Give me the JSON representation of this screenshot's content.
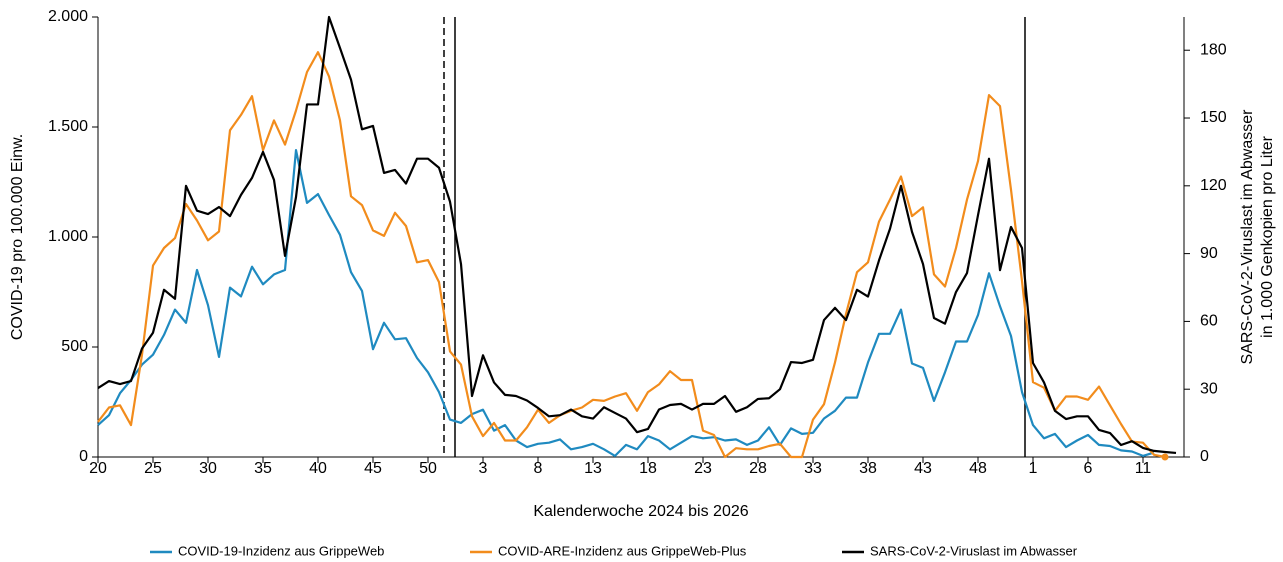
{
  "chart_data": {
    "type": "line",
    "x_label": "Kalenderwoche 2024 bis 2026",
    "y_label": "COVID-19 pro 100.000 Einw.",
    "y2_label": [
      "SARS-CoV-2-Viruslast im Abwasser",
      "in 1.000 Genkopien pro Liter"
    ],
    "categories": [
      "20",
      null,
      null,
      null,
      null,
      "25",
      null,
      null,
      null,
      null,
      "30",
      null,
      null,
      null,
      null,
      "35",
      null,
      null,
      null,
      null,
      "40",
      null,
      null,
      null,
      null,
      "45",
      null,
      null,
      null,
      null,
      "50",
      null,
      null,
      null,
      null,
      "3",
      null,
      null,
      null,
      null,
      "8",
      null,
      null,
      null,
      null,
      "13",
      null,
      null,
      null,
      null,
      "18",
      null,
      null,
      null,
      null,
      "23",
      null,
      null,
      null,
      null,
      "28",
      null,
      null,
      null,
      null,
      "33",
      null,
      null,
      null,
      null,
      "38",
      null,
      null,
      null,
      null,
      "43",
      null,
      null,
      null,
      null,
      "48",
      null,
      null,
      null,
      null,
      "1",
      null,
      null,
      null,
      null,
      "6",
      null,
      null,
      null,
      null,
      "11",
      null,
      null,
      null
    ],
    "ylim": [
      0,
      2000
    ],
    "yticks": [
      0,
      500,
      {
        "value": 1000,
        "label": "1.000"
      },
      {
        "value": 1500,
        "label": "1.500"
      },
      {
        "value": 2000,
        "label": "2.000"
      }
    ],
    "y2lim": [
      0,
      194.7
    ],
    "y2ticks": [
      0,
      30,
      60,
      90,
      120,
      150,
      180
    ],
    "series": [
      {
        "name": "COVID-19-Inzidenz aus GrippeWeb",
        "color": "#1f8ac0",
        "axis": "y",
        "values": [
          145,
          190,
          290,
          350,
          420,
          465,
          555,
          670,
          610,
          850,
          690,
          455,
          770,
          730,
          865,
          785,
          830,
          850,
          1395,
          1155,
          1195,
          1100,
          1010,
          840,
          755,
          490,
          610,
          535,
          540,
          450,
          385,
          295,
          170,
          155,
          195,
          215,
          120,
          145,
          75,
          45,
          60,
          65,
          80,
          35,
          45,
          60,
          35,
          5,
          55,
          35,
          95,
          75,
          35,
          65,
          95,
          85,
          90,
          75,
          80,
          55,
          75,
          135,
          55,
          130,
          105,
          110,
          175,
          210,
          270,
          270,
          430,
          560,
          560,
          670,
          425,
          405,
          255,
          385,
          525,
          525,
          645,
          835,
          685,
          550,
          295,
          145,
          85,
          105,
          45,
          75,
          100,
          55,
          50,
          30,
          25,
          5,
          20,
          null,
          null
        ]
      },
      {
        "name": "COVID-ARE-Inzidenz aus GrippeWeb-Plus",
        "color": "#f28c1c",
        "axis": "y",
        "marker_last": true,
        "values": [
          160,
          225,
          235,
          145,
          465,
          870,
          950,
          995,
          1150,
          1075,
          985,
          1025,
          1485,
          1555,
          1640,
          1395,
          1530,
          1420,
          1575,
          1750,
          1840,
          1730,
          1530,
          1185,
          1145,
          1030,
          1005,
          1110,
          1050,
          885,
          895,
          795,
          480,
          420,
          185,
          95,
          155,
          75,
          75,
          135,
          215,
          155,
          190,
          210,
          225,
          260,
          255,
          275,
          290,
          210,
          295,
          330,
          390,
          350,
          350,
          120,
          100,
          0,
          40,
          35,
          35,
          50,
          60,
          0,
          0,
          170,
          240,
          430,
          650,
          840,
          885,
          1070,
          1170,
          1275,
          1095,
          1135,
          830,
          775,
          950,
          1170,
          1345,
          1645,
          1595,
          1215,
          800,
          340,
          315,
          210,
          275,
          275,
          260,
          320,
          235,
          150,
          70,
          65,
          10,
          0,
          null
        ]
      },
      {
        "name": "SARS-CoV-2-Viruslast im Abwasser",
        "color": "#000000",
        "axis": "y2",
        "values": [
          30.5,
          33.6,
          32.3,
          33.6,
          48,
          55,
          74,
          70,
          120,
          109,
          107.5,
          110.6,
          106.6,
          116,
          123.5,
          135,
          122.6,
          89,
          115,
          156,
          156,
          194.7,
          181,
          167,
          145,
          146.5,
          125.7,
          127,
          121,
          132,
          132,
          128,
          113,
          85.4,
          27,
          45,
          33,
          27.5,
          27,
          25,
          21.7,
          18,
          18.5,
          21,
          18,
          17,
          22,
          19.5,
          17,
          11,
          12.4,
          21,
          23,
          23.5,
          21,
          23.5,
          23.5,
          27,
          20,
          22,
          25.7,
          26,
          30,
          42,
          41.6,
          43,
          60.6,
          66,
          60.6,
          74,
          71,
          87,
          101,
          120,
          99.6,
          85.4,
          61.5,
          59,
          73,
          81.4,
          107,
          132,
          82.7,
          101.8,
          92.5,
          41.6,
          33,
          20.4,
          16.8,
          18,
          18,
          12,
          10.6,
          5.3,
          7,
          4,
          2.7,
          2.2,
          1.8
        ]
      }
    ]
  }
}
